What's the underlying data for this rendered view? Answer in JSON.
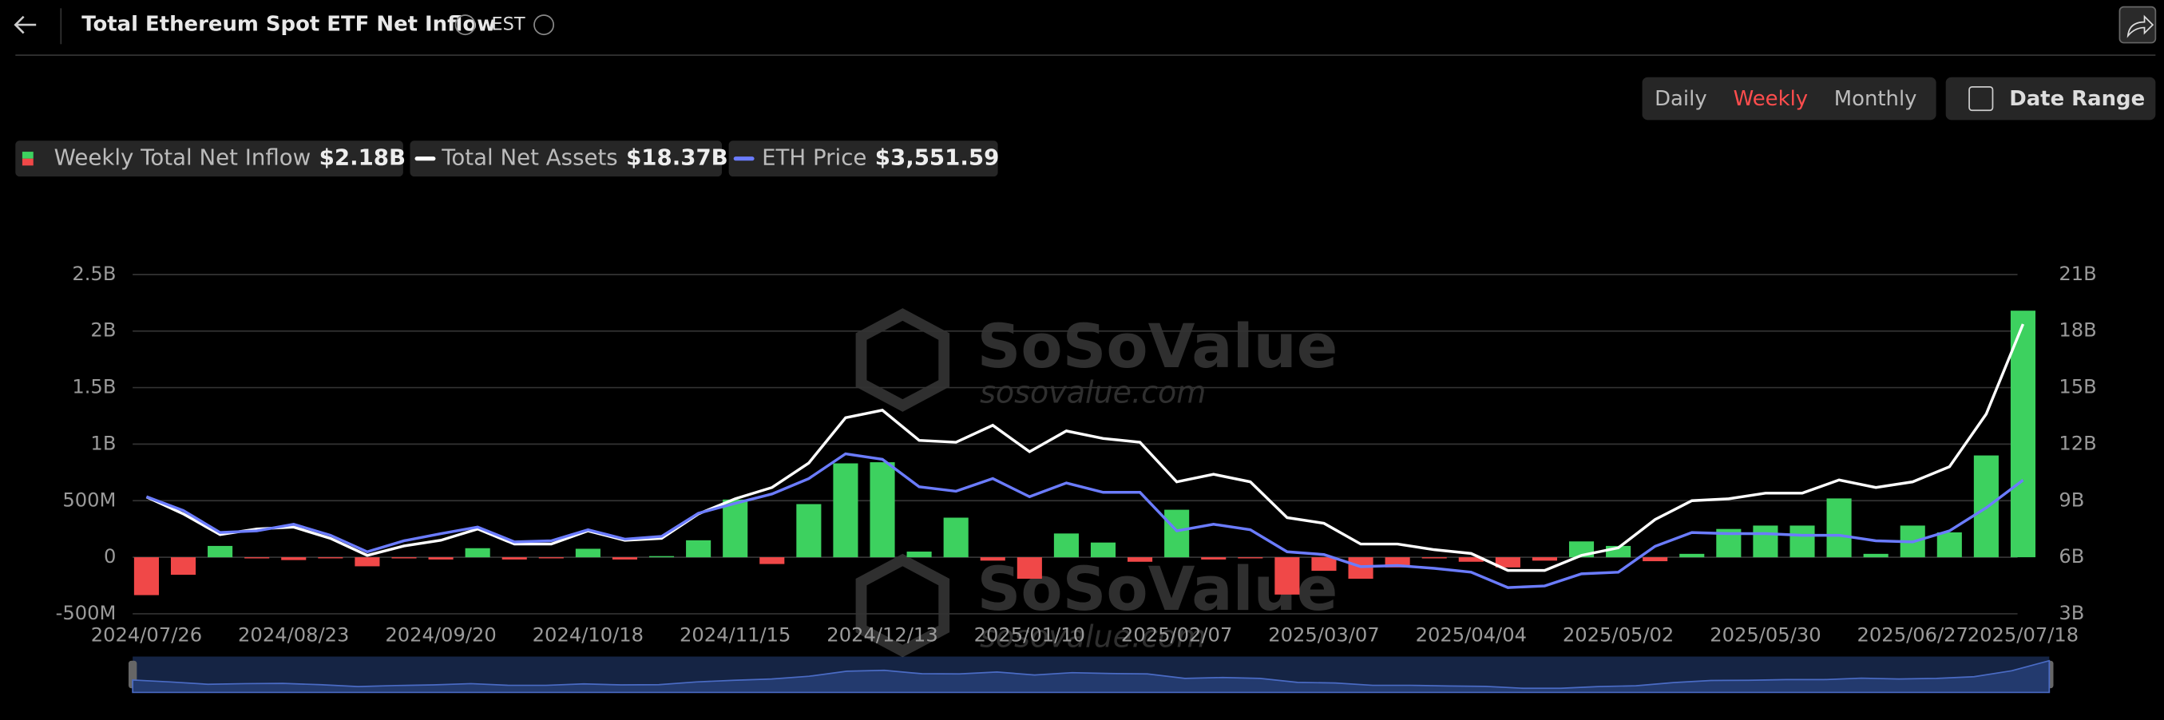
{
  "header": {
    "title": "Total Ethereum Spot ETF Net Inflow",
    "timezone": "EST"
  },
  "controls": {
    "intervals": [
      "Daily",
      "Weekly",
      "Monthly"
    ],
    "active": 1,
    "date_range": "Date Range"
  },
  "watermark": {
    "brand": "SoSoValue",
    "url": "sosovalue.com"
  },
  "chart_data": {
    "type": "bar",
    "categories": [
      "2024/07/26",
      null,
      null,
      null,
      "2024/08/23",
      null,
      null,
      null,
      "2024/09/20",
      null,
      null,
      null,
      "2024/10/18",
      null,
      null,
      null,
      "2024/11/15",
      null,
      null,
      null,
      "2024/12/13",
      null,
      null,
      null,
      "2025/01/10",
      null,
      null,
      null,
      "2025/02/07",
      null,
      null,
      null,
      "2025/03/07",
      null,
      null,
      null,
      "2025/04/04",
      null,
      null,
      null,
      "2025/05/02",
      null,
      null,
      null,
      "2025/05/30",
      null,
      null,
      null,
      "2025/06/27",
      null,
      null,
      "2025/07/18"
    ],
    "series": [
      {
        "name": "Weekly Total Net Inflow",
        "type": "bar",
        "axis": "y",
        "color": "#3dd15f",
        "negative_color": "#f04848",
        "values": [
          -0.335,
          -0.155,
          0.1,
          -0.01,
          -0.025,
          -0.005,
          -0.08,
          -0.01,
          -0.02,
          0.08,
          -0.02,
          -0.005,
          0.075,
          -0.02,
          0.01,
          0.15,
          0.51,
          -0.06,
          0.47,
          0.83,
          0.84,
          0.05,
          0.35,
          -0.03,
          -0.19,
          0.21,
          0.13,
          -0.04,
          0.42,
          -0.02,
          -0.005,
          -0.33,
          -0.12,
          -0.19,
          -0.09,
          -0.01,
          -0.04,
          -0.09,
          -0.03,
          0.14,
          0.1,
          -0.035,
          0.03,
          0.25,
          0.28,
          0.28,
          0.52,
          0.03,
          0.28,
          0.22,
          0.9,
          2.18
        ],
        "value_labels": [
          null,
          null,
          null,
          null,
          null,
          null,
          null,
          null,
          null,
          null,
          null,
          null,
          null,
          null,
          null,
          null,
          null,
          null,
          null,
          null,
          null,
          null,
          null,
          null,
          null,
          null,
          null,
          null,
          null,
          null,
          null,
          null,
          null,
          null,
          null,
          null,
          null,
          null,
          null,
          null,
          null,
          null,
          null,
          null,
          null,
          null,
          null,
          null,
          null,
          null,
          null,
          "$2.18B"
        ]
      },
      {
        "name": "Total Net Assets",
        "type": "line",
        "axis": "y2",
        "color": "#ffffff",
        "values": [
          9.2,
          8.3,
          7.2,
          7.5,
          7.6,
          7.0,
          6.1,
          6.6,
          6.9,
          7.5,
          6.7,
          6.7,
          7.4,
          6.9,
          7.0,
          8.3,
          9.1,
          9.7,
          11.0,
          13.4,
          13.8,
          12.2,
          12.1,
          13.0,
          11.6,
          12.7,
          12.3,
          12.1,
          10.0,
          10.4,
          10.0,
          8.1,
          7.8,
          6.7,
          6.7,
          6.4,
          6.2,
          5.3,
          5.3,
          6.1,
          6.5,
          8.0,
          9.0,
          9.1,
          9.4,
          9.4,
          10.1,
          9.7,
          10.0,
          10.8,
          13.6,
          18.37
        ],
        "value_labels": [
          null,
          null,
          null,
          null,
          null,
          null,
          null,
          null,
          null,
          null,
          null,
          null,
          null,
          null,
          null,
          null,
          null,
          null,
          null,
          null,
          null,
          null,
          null,
          null,
          null,
          null,
          null,
          null,
          null,
          null,
          null,
          null,
          null,
          null,
          null,
          null,
          null,
          null,
          null,
          null,
          null,
          null,
          null,
          null,
          null,
          null,
          null,
          null,
          null,
          null,
          null,
          "$18.37B"
        ]
      },
      {
        "name": "ETH Price",
        "type": "line",
        "color": "#6b7cff",
        "values": [
          3250,
          3000,
          2600,
          2630,
          2750,
          2550,
          2250,
          2450,
          2580,
          2700,
          2430,
          2450,
          2650,
          2480,
          2530,
          2950,
          3130,
          3300,
          3580,
          4030,
          3930,
          3430,
          3350,
          3580,
          3250,
          3500,
          3330,
          3330,
          2630,
          2750,
          2650,
          2250,
          2200,
          1980,
          2000,
          1950,
          1880,
          1600,
          1630,
          1850,
          1880,
          2350,
          2600,
          2580,
          2580,
          2550,
          2550,
          2450,
          2430,
          2630,
          3050,
          3551.59
        ],
        "value_labels": [
          null,
          null,
          null,
          null,
          null,
          null,
          null,
          null,
          null,
          null,
          null,
          null,
          null,
          null,
          null,
          null,
          null,
          null,
          null,
          null,
          null,
          null,
          null,
          null,
          null,
          null,
          null,
          null,
          null,
          null,
          null,
          null,
          null,
          null,
          null,
          null,
          null,
          null,
          null,
          null,
          null,
          null,
          null,
          null,
          null,
          null,
          null,
          null,
          null,
          null,
          null,
          "$3,551.59"
        ]
      }
    ],
    "ylim": [
      -0.5,
      2.5
    ],
    "yticks": [
      {
        "value": -0.5,
        "label": "-500M"
      },
      0,
      {
        "value": 0.5,
        "label": "500M"
      },
      {
        "value": 1,
        "label": "1B"
      },
      {
        "value": 1.5,
        "label": "1.5B"
      },
      {
        "value": 2,
        "label": "2B"
      },
      {
        "value": 2.5,
        "label": "2.5B"
      }
    ],
    "y2lim": [
      3,
      21
    ],
    "y2ticks": [
      {
        "value": 3,
        "label": "3B"
      },
      {
        "value": 6,
        "label": "6B"
      },
      {
        "value": 9,
        "label": "9B"
      },
      {
        "value": 12,
        "label": "12B"
      },
      {
        "value": 15,
        "label": "15B"
      },
      {
        "value": 18,
        "label": "18B"
      },
      {
        "value": 21,
        "label": "21B"
      }
    ],
    "grid": true
  }
}
